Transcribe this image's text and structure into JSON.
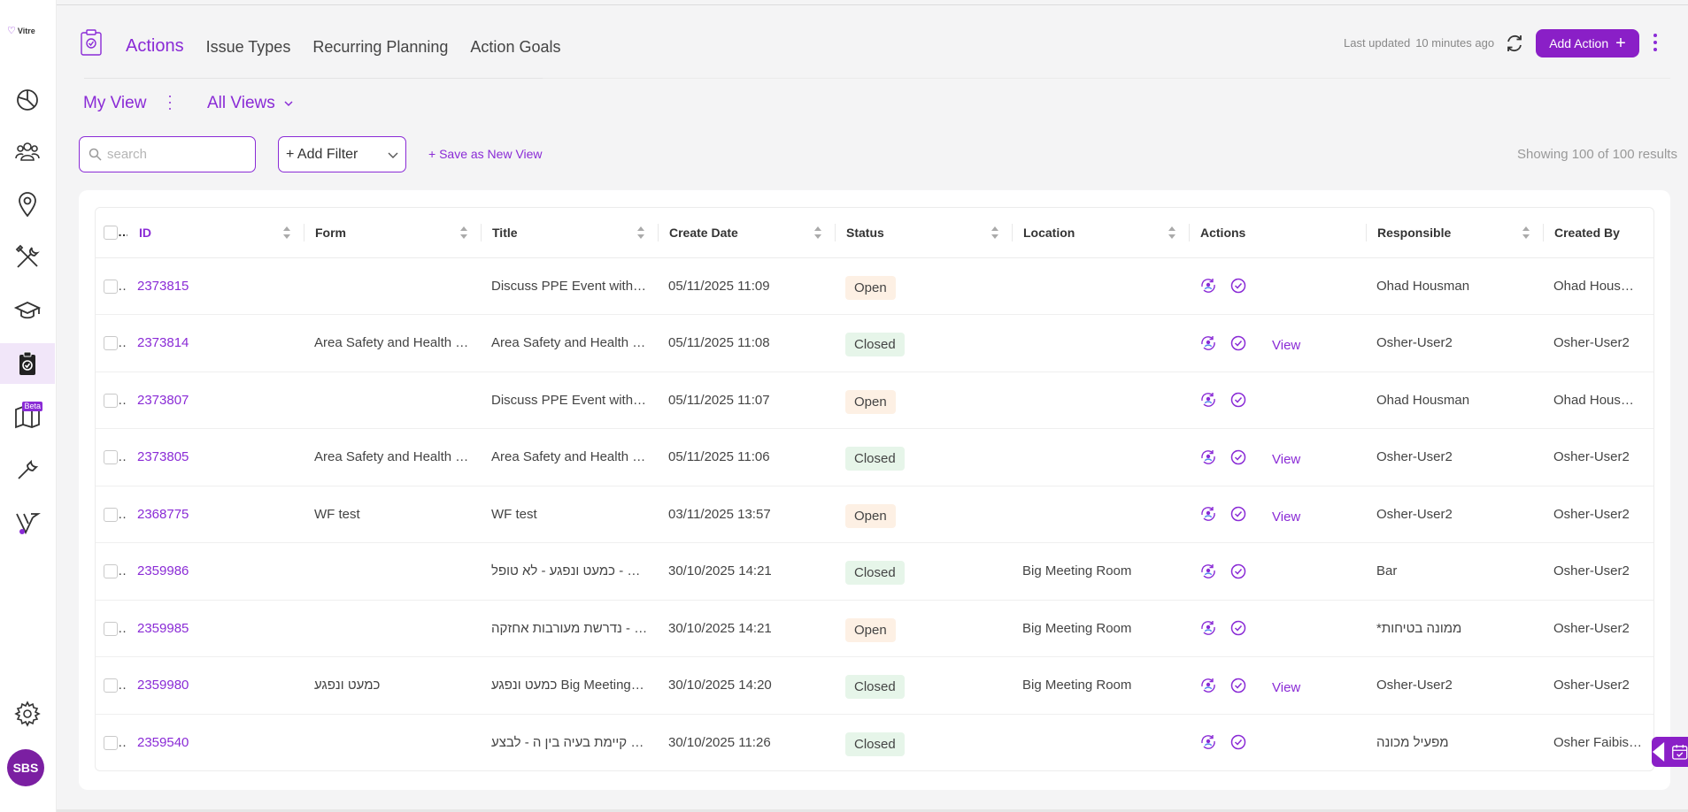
{
  "app": {
    "logo_text": "Vitre"
  },
  "sidebar": {
    "items": [
      {
        "name": "dashboard",
        "icon": "pie-chart-icon"
      },
      {
        "name": "people",
        "icon": "people-icon"
      },
      {
        "name": "locations",
        "icon": "map-pin-icon"
      },
      {
        "name": "tools",
        "icon": "tools-icon"
      },
      {
        "name": "training",
        "icon": "graduation-cap-icon"
      },
      {
        "name": "actions",
        "icon": "clipboard-check-icon",
        "active": true
      },
      {
        "name": "maps",
        "icon": "map-icon",
        "badge": "Beta"
      },
      {
        "name": "maintenance",
        "icon": "wrench-icon"
      },
      {
        "name": "vitre",
        "icon": "vitre-logo-icon"
      }
    ],
    "settings_icon": "gear-icon",
    "avatar_initials": "SBS"
  },
  "header": {
    "tabs": [
      "Actions",
      "Issue Types",
      "Recurring Planning",
      "Action Goals"
    ],
    "active_tab": "Actions",
    "last_updated_label": "Last updated",
    "last_updated_value": "10 minutes ago",
    "add_action_label": "Add Action",
    "accent_color": "#8a1fc7"
  },
  "views": {
    "current": "My View",
    "all_views_label": "All Views"
  },
  "toolbar": {
    "search_placeholder": "search",
    "add_filter_label": "+ Add Filter",
    "save_view_label": "+ Save as New View",
    "results_text": "Showing 100 of 100 results"
  },
  "table": {
    "columns": [
      "ID",
      "Form",
      "Title",
      "Create Date",
      "Status",
      "Location",
      "Actions",
      "Responsible",
      "Created By"
    ],
    "rows": [
      {
        "id": "2373815",
        "form": "",
        "title": "Discuss PPE Event with…",
        "date": "05/11/2025 11:09",
        "status": "Open",
        "location": "",
        "view": "",
        "responsible": "Ohad Housman",
        "created_by": "Ohad Housman S"
      },
      {
        "id": "2373814",
        "form": "Area Safety and Health …",
        "title": "Area Safety and Health …",
        "date": "05/11/2025 11:08",
        "status": "Closed",
        "location": "",
        "view": "View",
        "responsible": "Osher-User2",
        "created_by": "Osher-User2"
      },
      {
        "id": "2373807",
        "form": "",
        "title": "Discuss PPE Event with…",
        "date": "05/11/2025 11:07",
        "status": "Open",
        "location": "",
        "view": "",
        "responsible": "Ohad Housman",
        "created_by": "Ohad Housman S"
      },
      {
        "id": "2373805",
        "form": "Area Safety and Health …",
        "title": "Area Safety and Health …",
        "date": "05/11/2025 11:06",
        "status": "Closed",
        "location": "",
        "view": "View",
        "responsible": "Osher-User2",
        "created_by": "Osher-User2"
      },
      {
        "id": "2368775",
        "form": "WF test",
        "title": "WF test",
        "date": "03/11/2025 13:57",
        "status": "Open",
        "location": "",
        "view": "View",
        "responsible": "Osher-User2",
        "created_by": "Osher-User2"
      },
      {
        "id": "2359986",
        "form": "",
        "title": "כמעט ונפגע - לא טופל - B…",
        "date": "30/10/2025 14:21",
        "status": "Closed",
        "location": "Big Meeting Room",
        "view": "",
        "responsible": "Bar",
        "created_by": "Osher-User2"
      },
      {
        "id": "2359985",
        "form": "",
        "title": "נדרשת מעורבות אחזקה - …",
        "date": "30/10/2025 14:21",
        "status": "Open",
        "location": "Big Meeting Room",
        "view": "",
        "responsible": "*ממונה בטיחות",
        "created_by": "Osher-User2"
      },
      {
        "id": "2359980",
        "form": "כמעט ונפגע",
        "title": "כמעט ונפגע Big Meeting…",
        "date": "30/10/2025 14:20",
        "status": "Closed",
        "location": "Big Meeting Room",
        "view": "View",
        "responsible": "Osher-User2",
        "created_by": "Osher-User2"
      },
      {
        "id": "2359540",
        "form": "",
        "title": "קיימת בעיה בין ה - לבצע …",
        "date": "30/10/2025 11:26",
        "status": "Closed",
        "location": "",
        "view": "",
        "responsible": "מפעיל מכונה",
        "created_by": "Osher Faibish SU"
      }
    ]
  }
}
